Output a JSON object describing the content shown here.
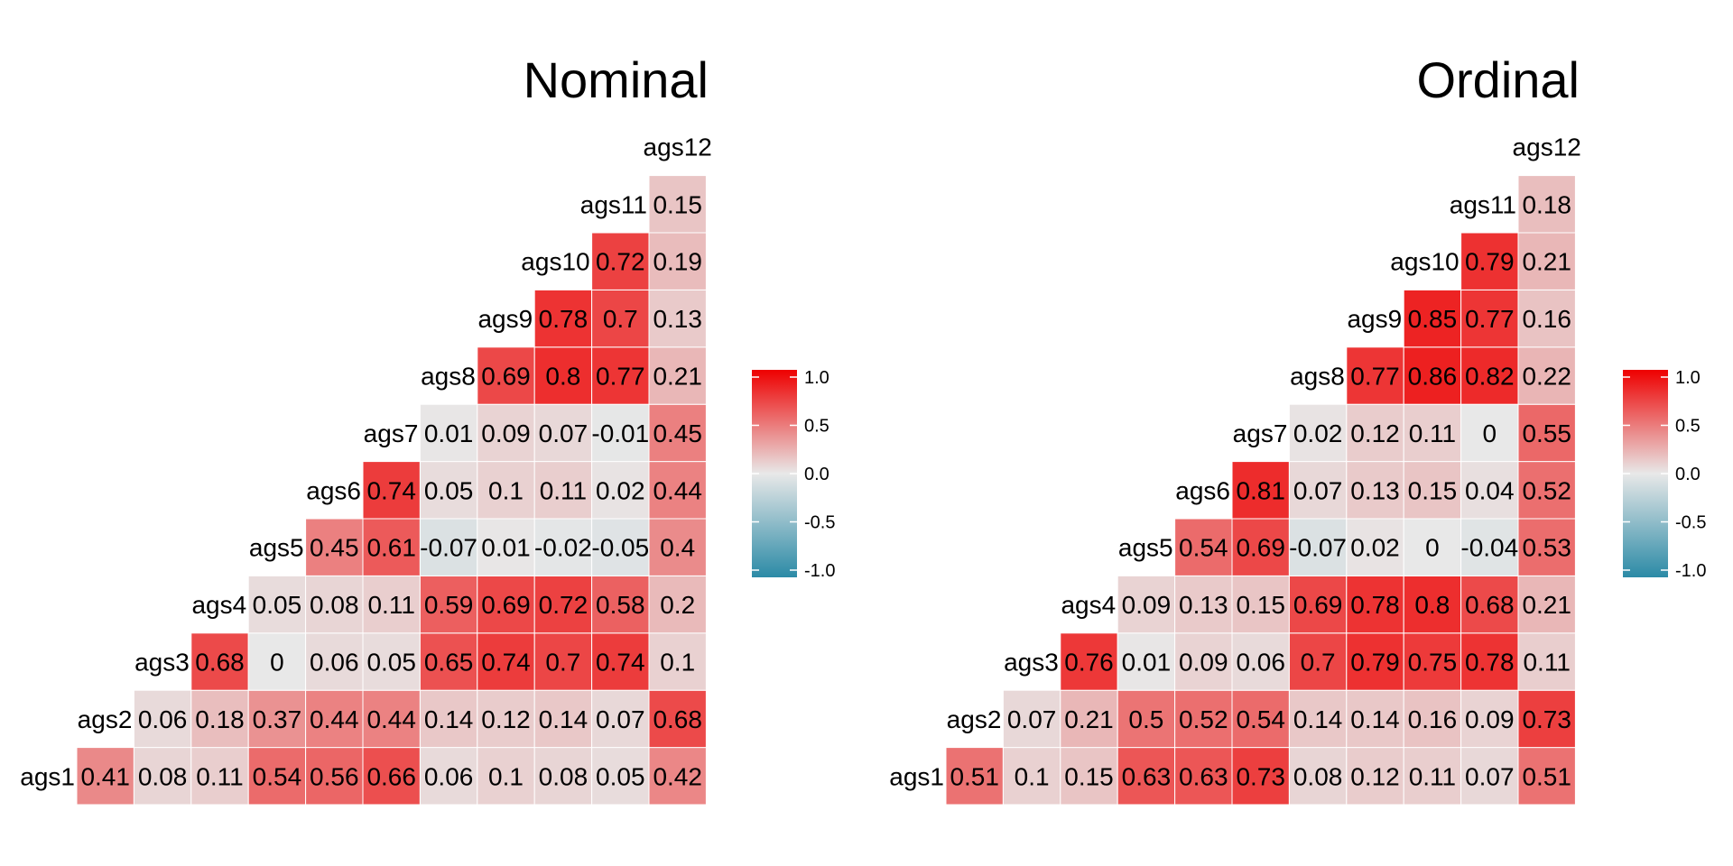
{
  "chart_data": [
    {
      "type": "heatmap",
      "title": "Nominal",
      "variables": [
        "ags1",
        "ags2",
        "ags3",
        "ags4",
        "ags5",
        "ags6",
        "ags7",
        "ags8",
        "ags9",
        "ags10",
        "ags11",
        "ags12"
      ],
      "values": [
        [
          0.41,
          0.08,
          0.11,
          0.54,
          0.56,
          0.66,
          0.06,
          0.1,
          0.08,
          0.05,
          0.42
        ],
        [
          0.06,
          0.18,
          0.37,
          0.44,
          0.44,
          0.14,
          0.12,
          0.14,
          0.07,
          0.68
        ],
        [
          0.68,
          0,
          0.06,
          0.05,
          0.65,
          0.74,
          0.7,
          0.74,
          0.1
        ],
        [
          0.05,
          0.08,
          0.11,
          0.59,
          0.69,
          0.72,
          0.58,
          0.2
        ],
        [
          0.45,
          0.61,
          -0.07,
          0.01,
          -0.02,
          -0.05,
          0.4
        ],
        [
          0.74,
          0.05,
          0.1,
          0.11,
          0.02,
          0.44
        ],
        [
          0.01,
          0.09,
          0.07,
          -0.01,
          0.45
        ],
        [
          0.69,
          0.8,
          0.77,
          0.21
        ],
        [
          0.78,
          0.7,
          0.13
        ],
        [
          0.72,
          0.19
        ],
        [
          0.15
        ]
      ],
      "legend_ticks": [
        "1.0",
        "0.5",
        "0.0",
        "-0.5",
        "-1.0"
      ],
      "scale_range": [
        -1,
        1
      ],
      "colors": {
        "low": "#2b8aa6",
        "mid": "#e8e8e8",
        "high": "#ee0000"
      }
    },
    {
      "type": "heatmap",
      "title": "Ordinal",
      "variables": [
        "ags1",
        "ags2",
        "ags3",
        "ags4",
        "ags5",
        "ags6",
        "ags7",
        "ags8",
        "ags9",
        "ags10",
        "ags11",
        "ags12"
      ],
      "values": [
        [
          0.51,
          0.1,
          0.15,
          0.63,
          0.63,
          0.73,
          0.08,
          0.12,
          0.11,
          0.07,
          0.51
        ],
        [
          0.07,
          0.21,
          0.5,
          0.52,
          0.54,
          0.14,
          0.14,
          0.16,
          0.09,
          0.73
        ],
        [
          0.76,
          0.01,
          0.09,
          0.06,
          0.7,
          0.79,
          0.75,
          0.78,
          0.11
        ],
        [
          0.09,
          0.13,
          0.15,
          0.69,
          0.78,
          0.8,
          0.68,
          0.21
        ],
        [
          0.54,
          0.69,
          -0.07,
          0.02,
          0,
          -0.04,
          0.53
        ],
        [
          0.81,
          0.07,
          0.13,
          0.15,
          0.04,
          0.52
        ],
        [
          0.02,
          0.12,
          0.11,
          0,
          0.55
        ],
        [
          0.77,
          0.86,
          0.82,
          0.22
        ],
        [
          0.85,
          0.77,
          0.16
        ],
        [
          0.79,
          0.21
        ],
        [
          0.18
        ]
      ],
      "legend_ticks": [
        "1.0",
        "0.5",
        "0.0",
        "-0.5",
        "-1.0"
      ],
      "scale_range": [
        -1,
        1
      ],
      "colors": {
        "low": "#2b8aa6",
        "mid": "#e8e8e8",
        "high": "#ee0000"
      }
    }
  ]
}
